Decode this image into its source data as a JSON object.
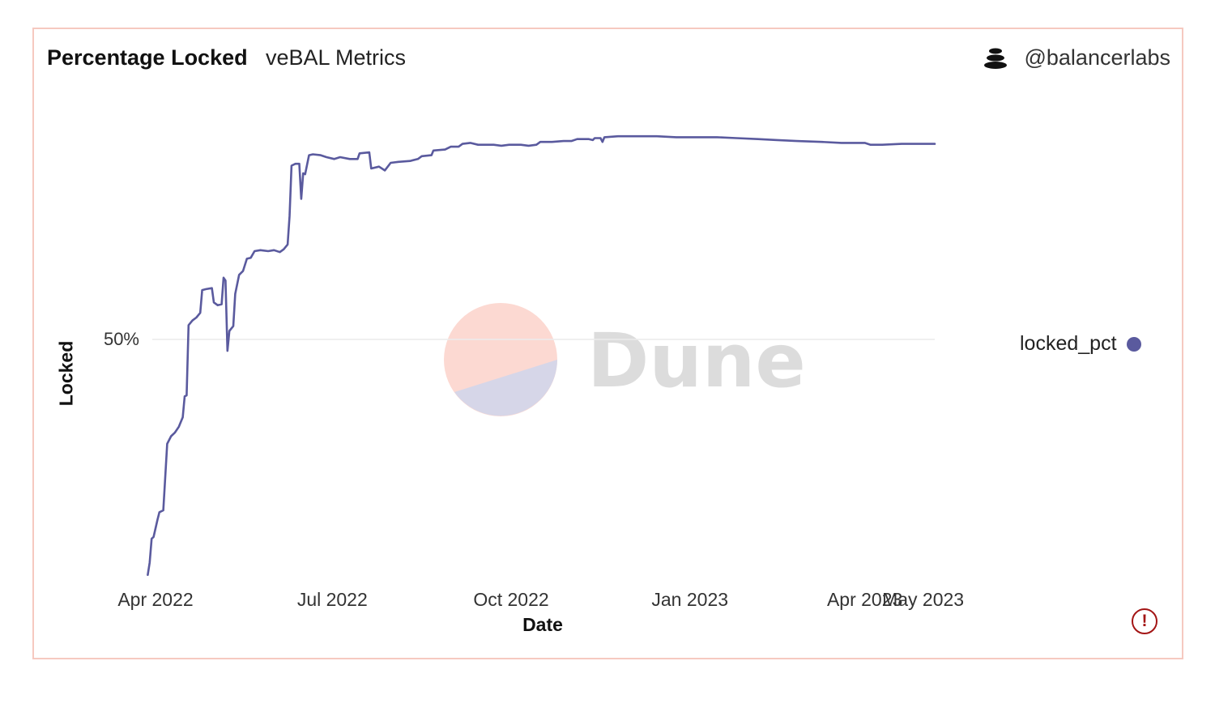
{
  "header": {
    "title": "Percentage Locked",
    "subtitle": "veBAL Metrics",
    "author": "@balancerlabs",
    "author_icon": "stack-icon"
  },
  "watermark": {
    "text": "Dune",
    "colors": [
      "#fcd9d2",
      "#d6d6e8"
    ]
  },
  "warning_icon": "exclamation-circle-icon",
  "colors": {
    "series": "#5a5a9e",
    "grid": "#ececec",
    "border": "#f6c9c0",
    "warning": "#a31515"
  },
  "chart_data": {
    "type": "line",
    "xlabel": "Date",
    "ylabel": "Locked",
    "x_ticks": [
      "Apr 2022",
      "Jul 2022",
      "Oct 2022",
      "Jan 2023",
      "Apr 2023",
      "May 2023"
    ],
    "x_tick_dates": [
      "2022-04-01",
      "2022-07-01",
      "2022-10-01",
      "2023-01-01",
      "2023-04-01",
      "2023-05-01"
    ],
    "y_ticks": [
      {
        "value": 0.5,
        "label": "50%"
      }
    ],
    "xlim": [
      "2022-04-01",
      "2023-05-07"
    ],
    "ylim": [
      0.25,
      0.75
    ],
    "grid": true,
    "legend_position": "right",
    "series": [
      {
        "name": "locked_pct",
        "color": "#5a5a9e",
        "points": [
          [
            "2022-03-28",
            0.252
          ],
          [
            "2022-03-29",
            0.265
          ],
          [
            "2022-03-30",
            0.29
          ],
          [
            "2022-03-31",
            0.292
          ],
          [
            "2022-04-02",
            0.31
          ],
          [
            "2022-04-03",
            0.318
          ],
          [
            "2022-04-05",
            0.32
          ],
          [
            "2022-04-07",
            0.39
          ],
          [
            "2022-04-09",
            0.398
          ],
          [
            "2022-04-11",
            0.402
          ],
          [
            "2022-04-13",
            0.408
          ],
          [
            "2022-04-15",
            0.418
          ],
          [
            "2022-04-16",
            0.44
          ],
          [
            "2022-04-17",
            0.441
          ],
          [
            "2022-04-18",
            0.515
          ],
          [
            "2022-04-20",
            0.52
          ],
          [
            "2022-04-22",
            0.523
          ],
          [
            "2022-04-24",
            0.528
          ],
          [
            "2022-04-25",
            0.552
          ],
          [
            "2022-04-27",
            0.553
          ],
          [
            "2022-04-30",
            0.554
          ],
          [
            "2022-05-01",
            0.539
          ],
          [
            "2022-05-03",
            0.536
          ],
          [
            "2022-05-05",
            0.537
          ],
          [
            "2022-05-06",
            0.565
          ],
          [
            "2022-05-07",
            0.562
          ],
          [
            "2022-05-08",
            0.488
          ],
          [
            "2022-05-09",
            0.509
          ],
          [
            "2022-05-11",
            0.514
          ],
          [
            "2022-05-12",
            0.548
          ],
          [
            "2022-05-14",
            0.568
          ],
          [
            "2022-05-16",
            0.572
          ],
          [
            "2022-05-18",
            0.585
          ],
          [
            "2022-05-20",
            0.586
          ],
          [
            "2022-05-22",
            0.593
          ],
          [
            "2022-05-25",
            0.594
          ],
          [
            "2022-05-29",
            0.593
          ],
          [
            "2022-06-01",
            0.594
          ],
          [
            "2022-06-04",
            0.592
          ],
          [
            "2022-06-06",
            0.595
          ],
          [
            "2022-06-08",
            0.6
          ],
          [
            "2022-06-09",
            0.63
          ],
          [
            "2022-06-10",
            0.683
          ],
          [
            "2022-06-12",
            0.685
          ],
          [
            "2022-06-14",
            0.685
          ],
          [
            "2022-06-15",
            0.648
          ],
          [
            "2022-06-16",
            0.675
          ],
          [
            "2022-06-17",
            0.674
          ],
          [
            "2022-06-19",
            0.694
          ],
          [
            "2022-06-21",
            0.695
          ],
          [
            "2022-06-25",
            0.694
          ],
          [
            "2022-06-28",
            0.692
          ],
          [
            "2022-07-02",
            0.69
          ],
          [
            "2022-07-05",
            0.692
          ],
          [
            "2022-07-10",
            0.69
          ],
          [
            "2022-07-14",
            0.69
          ],
          [
            "2022-07-15",
            0.696
          ],
          [
            "2022-07-20",
            0.697
          ],
          [
            "2022-07-21",
            0.68
          ],
          [
            "2022-07-25",
            0.682
          ],
          [
            "2022-07-28",
            0.678
          ],
          [
            "2022-07-31",
            0.686
          ],
          [
            "2022-08-04",
            0.687
          ],
          [
            "2022-08-10",
            0.688
          ],
          [
            "2022-08-14",
            0.69
          ],
          [
            "2022-08-16",
            0.693
          ],
          [
            "2022-08-21",
            0.694
          ],
          [
            "2022-08-22",
            0.699
          ],
          [
            "2022-08-28",
            0.7
          ],
          [
            "2022-08-31",
            0.703
          ],
          [
            "2022-09-04",
            0.703
          ],
          [
            "2022-09-06",
            0.706
          ],
          [
            "2022-09-10",
            0.707
          ],
          [
            "2022-09-14",
            0.705
          ],
          [
            "2022-09-22",
            0.705
          ],
          [
            "2022-09-26",
            0.704
          ],
          [
            "2022-09-30",
            0.705
          ],
          [
            "2022-10-06",
            0.705
          ],
          [
            "2022-10-10",
            0.704
          ],
          [
            "2022-10-14",
            0.705
          ],
          [
            "2022-10-16",
            0.708
          ],
          [
            "2022-10-22",
            0.708
          ],
          [
            "2022-10-28",
            0.709
          ],
          [
            "2022-11-01",
            0.709
          ],
          [
            "2022-11-04",
            0.711
          ],
          [
            "2022-11-10",
            0.711
          ],
          [
            "2022-11-12",
            0.71
          ],
          [
            "2022-11-13",
            0.712
          ],
          [
            "2022-11-16",
            0.712
          ],
          [
            "2022-11-17",
            0.708
          ],
          [
            "2022-11-18",
            0.713
          ],
          [
            "2022-11-25",
            0.714
          ],
          [
            "2022-12-05",
            0.714
          ],
          [
            "2022-12-15",
            0.714
          ],
          [
            "2022-12-25",
            0.713
          ],
          [
            "2023-01-05",
            0.713
          ],
          [
            "2023-01-15",
            0.713
          ],
          [
            "2023-01-25",
            0.712
          ],
          [
            "2023-02-05",
            0.711
          ],
          [
            "2023-02-15",
            0.71
          ],
          [
            "2023-02-25",
            0.709
          ],
          [
            "2023-03-10",
            0.708
          ],
          [
            "2023-03-20",
            0.707
          ],
          [
            "2023-04-01",
            0.707
          ],
          [
            "2023-04-04",
            0.705
          ],
          [
            "2023-04-10",
            0.705
          ],
          [
            "2023-04-20",
            0.706
          ],
          [
            "2023-04-28",
            0.706
          ],
          [
            "2023-05-07",
            0.706
          ]
        ]
      }
    ]
  }
}
